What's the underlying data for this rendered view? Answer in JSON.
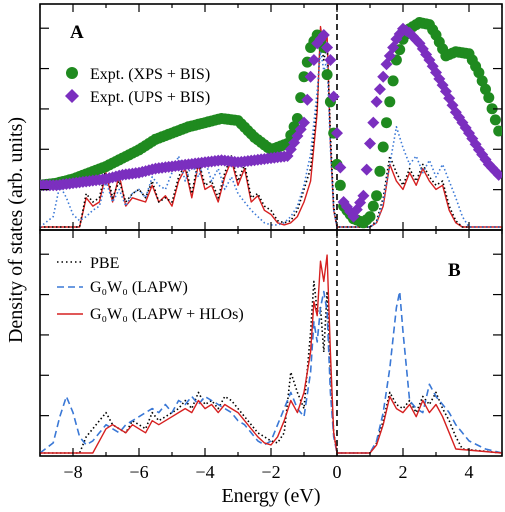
{
  "figure": {
    "ylabel": "Density of states (arb. units)",
    "xlabel": "Energy (eV)",
    "xticks": [
      "-8",
      "-6",
      "-4",
      "-2",
      "0",
      "2",
      "4"
    ]
  },
  "chart_data": [
    {
      "panel": "A",
      "type": "line",
      "xlabel": "Energy (eV)",
      "ylabel": "Density of states (arb. units)",
      "xlim": [
        -9,
        5
      ],
      "ylim": [
        0,
        1
      ],
      "grid": false,
      "legend": "top-left",
      "fermi_level_line": 0,
      "series": [
        {
          "name": "Expt. (XPS + BIS)",
          "style": "markers-circle",
          "color": "#1f8a1f",
          "x": [
            -9.0,
            -8.5,
            -8.0,
            -7.5,
            -7.0,
            -6.5,
            -6.0,
            -5.5,
            -5.0,
            -4.5,
            -4.0,
            -3.5,
            -3.0,
            -2.5,
            -2.0,
            -1.5,
            -1.2,
            -1.0,
            -0.8,
            -0.6,
            -0.4,
            -0.2,
            0.0,
            0.2,
            0.5,
            0.8,
            1.0,
            1.2,
            1.5,
            1.8,
            2.0,
            2.2,
            2.5,
            2.8,
            3.0,
            3.3,
            3.6,
            4.0,
            4.3,
            4.6,
            4.9
          ],
          "y": [
            0.2,
            0.21,
            0.23,
            0.26,
            0.29,
            0.33,
            0.37,
            0.42,
            0.45,
            0.48,
            0.5,
            0.52,
            0.51,
            0.43,
            0.37,
            0.4,
            0.52,
            0.72,
            0.86,
            0.92,
            0.86,
            0.6,
            0.3,
            0.1,
            0.04,
            0.02,
            0.05,
            0.15,
            0.5,
            0.8,
            0.9,
            0.95,
            0.98,
            0.97,
            0.92,
            0.82,
            0.84,
            0.83,
            0.74,
            0.62,
            0.46
          ]
        },
        {
          "name": "Expt. (UPS + BIS)",
          "style": "markers-diamond",
          "color": "#7b2fbf",
          "x": [
            -9.0,
            -8.5,
            -8.0,
            -7.5,
            -7.0,
            -6.5,
            -6.0,
            -5.5,
            -5.0,
            -4.5,
            -4.0,
            -3.5,
            -3.0,
            -2.5,
            -2.0,
            -1.5,
            -1.0,
            -0.8,
            -0.6,
            -0.4,
            -0.2,
            0.0,
            0.2,
            0.5,
            0.8,
            1.0,
            1.2,
            1.5,
            1.8,
            2.0,
            2.2,
            2.5,
            2.8,
            3.0,
            3.3,
            3.6,
            4.0,
            4.3,
            4.6,
            4.9
          ],
          "y": [
            0.2,
            0.2,
            0.21,
            0.22,
            0.23,
            0.25,
            0.26,
            0.28,
            0.29,
            0.3,
            0.31,
            0.32,
            0.31,
            0.32,
            0.33,
            0.34,
            0.5,
            0.72,
            0.88,
            0.92,
            0.8,
            0.45,
            0.12,
            0.05,
            0.15,
            0.4,
            0.6,
            0.78,
            0.9,
            0.95,
            0.93,
            0.88,
            0.8,
            0.74,
            0.65,
            0.55,
            0.45,
            0.37,
            0.3,
            0.25
          ]
        },
        {
          "name": "",
          "style": "line-solid",
          "color": "#d62020",
          "x": [
            -9.0,
            -7.8,
            -7.6,
            -7.4,
            -7.2,
            -7.0,
            -6.8,
            -6.6,
            -6.4,
            -6.2,
            -6.0,
            -5.8,
            -5.6,
            -5.4,
            -5.2,
            -5.0,
            -4.8,
            -4.6,
            -4.4,
            -4.2,
            -4.0,
            -3.8,
            -3.6,
            -3.4,
            -3.2,
            -3.0,
            -2.8,
            -2.6,
            -2.4,
            -2.2,
            -2.0,
            -1.8,
            -1.6,
            -1.4,
            -1.2,
            -1.0,
            -0.8,
            -0.6,
            -0.5,
            -0.4,
            -0.3,
            -0.2,
            -0.1,
            0.0,
            1.0,
            1.2,
            1.4,
            1.6,
            1.8,
            2.0,
            2.2,
            2.4,
            2.6,
            2.8,
            3.0,
            3.2,
            3.4,
            3.6,
            3.8,
            5.0
          ],
          "y": [
            0.0,
            0.0,
            0.14,
            0.1,
            0.12,
            0.26,
            0.12,
            0.25,
            0.1,
            0.14,
            0.13,
            0.12,
            0.2,
            0.12,
            0.15,
            0.1,
            0.22,
            0.28,
            0.14,
            0.3,
            0.18,
            0.2,
            0.12,
            0.24,
            0.32,
            0.2,
            0.28,
            0.12,
            0.15,
            0.08,
            0.06,
            0.02,
            0.01,
            0.02,
            0.05,
            0.12,
            0.22,
            0.55,
            0.96,
            0.85,
            0.92,
            0.4,
            0.08,
            0.0,
            0.0,
            0.02,
            0.1,
            0.3,
            0.22,
            0.18,
            0.26,
            0.2,
            0.28,
            0.22,
            0.18,
            0.2,
            0.08,
            0.02,
            0.0,
            0.0
          ]
        },
        {
          "name": "",
          "style": "line-dotted",
          "color": "#000000",
          "x": [
            -9.0,
            -7.8,
            -7.6,
            -7.4,
            -7.2,
            -7.0,
            -6.8,
            -6.6,
            -6.4,
            -6.2,
            -6.0,
            -5.8,
            -5.6,
            -5.4,
            -5.2,
            -5.0,
            -4.8,
            -4.6,
            -4.4,
            -4.2,
            -4.0,
            -3.8,
            -3.6,
            -3.4,
            -3.2,
            -3.0,
            -2.8,
            -2.6,
            -2.4,
            -2.2,
            -2.0,
            -1.8,
            -1.6,
            -1.4,
            -1.2,
            -1.0,
            -0.8,
            -0.6,
            -0.5,
            -0.4,
            -0.3,
            -0.2,
            -0.1,
            0.0,
            1.0,
            1.2,
            1.4,
            1.6,
            1.8,
            2.0,
            2.2,
            2.4,
            2.6,
            2.8,
            3.0,
            3.2,
            3.4,
            3.6,
            3.8,
            5.0
          ],
          "y": [
            0.0,
            0.0,
            0.16,
            0.12,
            0.14,
            0.28,
            0.14,
            0.22,
            0.12,
            0.16,
            0.18,
            0.14,
            0.22,
            0.12,
            0.14,
            0.12,
            0.24,
            0.3,
            0.16,
            0.32,
            0.2,
            0.22,
            0.14,
            0.26,
            0.34,
            0.22,
            0.3,
            0.14,
            0.16,
            0.1,
            0.08,
            0.03,
            0.02,
            0.03,
            0.08,
            0.18,
            0.28,
            0.6,
            0.9,
            0.8,
            0.88,
            0.45,
            0.1,
            0.0,
            0.0,
            0.03,
            0.14,
            0.34,
            0.26,
            0.2,
            0.28,
            0.22,
            0.3,
            0.24,
            0.2,
            0.22,
            0.1,
            0.03,
            0.0,
            0.0
          ]
        },
        {
          "name": "",
          "style": "line-dotted",
          "color": "#3a78d6",
          "x": [
            -9.0,
            -8.6,
            -8.4,
            -8.2,
            -8.0,
            -7.8,
            -7.6,
            -7.4,
            -7.2,
            -7.0,
            -6.8,
            -6.6,
            -6.4,
            -6.2,
            -6.0,
            -5.8,
            -5.6,
            -5.4,
            -5.2,
            -5.0,
            -4.8,
            -4.6,
            -4.4,
            -4.2,
            -4.0,
            -3.8,
            -3.6,
            -3.4,
            -3.2,
            -3.0,
            -2.8,
            -2.6,
            -2.4,
            -2.2,
            -2.0,
            -1.8,
            -1.6,
            -1.4,
            -1.2,
            -1.0,
            -0.8,
            -0.6,
            -0.5,
            -0.4,
            -0.3,
            -0.2,
            -0.1,
            0.0,
            1.0,
            1.2,
            1.4,
            1.6,
            1.8,
            2.0,
            2.2,
            2.4,
            2.6,
            2.8,
            3.0,
            3.2,
            3.4,
            3.6,
            3.8,
            4.0,
            5.0
          ],
          "y": [
            0.0,
            0.05,
            0.2,
            0.14,
            0.06,
            0.03,
            0.05,
            0.08,
            0.1,
            0.22,
            0.12,
            0.18,
            0.1,
            0.16,
            0.18,
            0.14,
            0.24,
            0.2,
            0.18,
            0.26,
            0.34,
            0.22,
            0.3,
            0.24,
            0.32,
            0.22,
            0.28,
            0.18,
            0.24,
            0.16,
            0.12,
            0.08,
            0.05,
            0.02,
            0.01,
            0.01,
            0.02,
            0.05,
            0.1,
            0.2,
            0.35,
            0.65,
            0.85,
            0.75,
            0.8,
            0.38,
            0.08,
            0.0,
            0.0,
            0.02,
            0.12,
            0.3,
            0.48,
            0.38,
            0.3,
            0.34,
            0.26,
            0.32,
            0.24,
            0.3,
            0.22,
            0.14,
            0.05,
            0.0,
            0.0
          ]
        }
      ]
    },
    {
      "panel": "B",
      "type": "line",
      "xlabel": "Energy (eV)",
      "ylabel": "Density of states (arb. units)",
      "xlim": [
        -9,
        5
      ],
      "ylim": [
        0,
        1
      ],
      "grid": false,
      "legend": "top-left",
      "fermi_level_line": 0,
      "series": [
        {
          "name": "PBE",
          "style": "line-dotted",
          "color": "#000000",
          "x": [
            -9.0,
            -7.8,
            -7.6,
            -7.4,
            -7.2,
            -7.0,
            -6.8,
            -6.6,
            -6.4,
            -6.2,
            -6.0,
            -5.8,
            -5.6,
            -5.4,
            -5.2,
            -5.0,
            -4.8,
            -4.6,
            -4.4,
            -4.2,
            -4.0,
            -3.8,
            -3.6,
            -3.4,
            -3.2,
            -3.0,
            -2.8,
            -2.6,
            -2.4,
            -2.2,
            -2.0,
            -1.8,
            -1.6,
            -1.4,
            -1.2,
            -1.0,
            -0.8,
            -0.7,
            -0.6,
            -0.5,
            -0.4,
            -0.3,
            -0.2,
            -0.1,
            0.0,
            1.0,
            1.2,
            1.4,
            1.6,
            1.8,
            2.0,
            2.2,
            2.4,
            2.6,
            2.8,
            3.0,
            3.2,
            3.4,
            3.6,
            3.8,
            5.0
          ],
          "y": [
            0.0,
            0.0,
            0.08,
            0.12,
            0.16,
            0.2,
            0.14,
            0.12,
            0.1,
            0.16,
            0.14,
            0.12,
            0.2,
            0.16,
            0.18,
            0.2,
            0.22,
            0.26,
            0.22,
            0.3,
            0.24,
            0.26,
            0.22,
            0.28,
            0.26,
            0.22,
            0.18,
            0.14,
            0.1,
            0.08,
            0.06,
            0.05,
            0.1,
            0.4,
            0.3,
            0.22,
            0.6,
            0.85,
            0.7,
            0.72,
            0.5,
            0.8,
            0.4,
            0.1,
            0.0,
            0.0,
            0.05,
            0.16,
            0.3,
            0.24,
            0.22,
            0.26,
            0.2,
            0.28,
            0.24,
            0.3,
            0.22,
            0.16,
            0.08,
            0.02,
            0.0
          ]
        },
        {
          "name": "G₀W₀ (LAPW)",
          "style": "line-dashed",
          "color": "#3a78d6",
          "x": [
            -9.0,
            -8.6,
            -8.4,
            -8.2,
            -8.0,
            -7.8,
            -7.6,
            -7.4,
            -7.2,
            -7.0,
            -6.8,
            -6.6,
            -6.4,
            -6.2,
            -6.0,
            -5.8,
            -5.6,
            -5.4,
            -5.2,
            -5.0,
            -4.8,
            -4.6,
            -4.4,
            -4.2,
            -4.0,
            -3.8,
            -3.6,
            -3.4,
            -3.2,
            -3.0,
            -2.8,
            -2.6,
            -2.4,
            -2.2,
            -2.0,
            -1.8,
            -1.6,
            -1.4,
            -1.2,
            -1.0,
            -0.8,
            -0.7,
            -0.6,
            -0.5,
            -0.4,
            -0.3,
            -0.2,
            -0.1,
            0.0,
            1.0,
            1.2,
            1.4,
            1.6,
            1.8,
            1.9,
            2.0,
            2.2,
            2.4,
            2.6,
            2.8,
            3.0,
            3.2,
            3.4,
            3.6,
            3.8,
            4.0,
            4.5,
            5.0
          ],
          "y": [
            0.0,
            0.05,
            0.18,
            0.28,
            0.2,
            0.08,
            0.04,
            0.06,
            0.1,
            0.14,
            0.12,
            0.1,
            0.14,
            0.16,
            0.18,
            0.2,
            0.22,
            0.2,
            0.24,
            0.2,
            0.26,
            0.24,
            0.28,
            0.24,
            0.28,
            0.26,
            0.24,
            0.22,
            0.2,
            0.16,
            0.14,
            0.1,
            0.06,
            0.04,
            0.06,
            0.14,
            0.22,
            0.3,
            0.22,
            0.18,
            0.4,
            0.65,
            0.55,
            0.72,
            0.8,
            0.7,
            0.3,
            0.08,
            0.0,
            0.0,
            0.06,
            0.2,
            0.42,
            0.72,
            0.8,
            0.6,
            0.26,
            0.22,
            0.2,
            0.34,
            0.28,
            0.24,
            0.2,
            0.14,
            0.1,
            0.06,
            0.02,
            0.0
          ]
        },
        {
          "name": "G₀W₀ (LAPW + HLOs)",
          "style": "line-solid",
          "color": "#d62020",
          "x": [
            -9.0,
            -7.4,
            -7.2,
            -7.0,
            -6.8,
            -6.6,
            -6.4,
            -6.2,
            -6.0,
            -5.8,
            -5.6,
            -5.4,
            -5.2,
            -5.0,
            -4.8,
            -4.6,
            -4.4,
            -4.2,
            -4.0,
            -3.8,
            -3.6,
            -3.4,
            -3.2,
            -3.0,
            -2.8,
            -2.6,
            -2.4,
            -2.2,
            -2.0,
            -1.8,
            -1.6,
            -1.4,
            -1.2,
            -1.0,
            -0.8,
            -0.7,
            -0.6,
            -0.5,
            -0.4,
            -0.3,
            -0.2,
            -0.1,
            0.0,
            1.0,
            1.2,
            1.4,
            1.6,
            1.8,
            2.0,
            2.2,
            2.4,
            2.6,
            2.8,
            3.0,
            3.2,
            3.4,
            3.6,
            5.0
          ],
          "y": [
            0.0,
            0.0,
            0.06,
            0.12,
            0.14,
            0.12,
            0.1,
            0.14,
            0.12,
            0.1,
            0.16,
            0.14,
            0.16,
            0.18,
            0.2,
            0.22,
            0.2,
            0.26,
            0.22,
            0.24,
            0.2,
            0.24,
            0.22,
            0.2,
            0.16,
            0.12,
            0.08,
            0.05,
            0.04,
            0.08,
            0.16,
            0.26,
            0.2,
            0.3,
            0.5,
            0.75,
            0.68,
            0.95,
            0.85,
            0.98,
            0.5,
            0.1,
            0.0,
            0.0,
            0.04,
            0.14,
            0.28,
            0.22,
            0.2,
            0.24,
            0.18,
            0.26,
            0.2,
            0.24,
            0.18,
            0.1,
            0.02,
            0.0
          ]
        }
      ]
    }
  ]
}
